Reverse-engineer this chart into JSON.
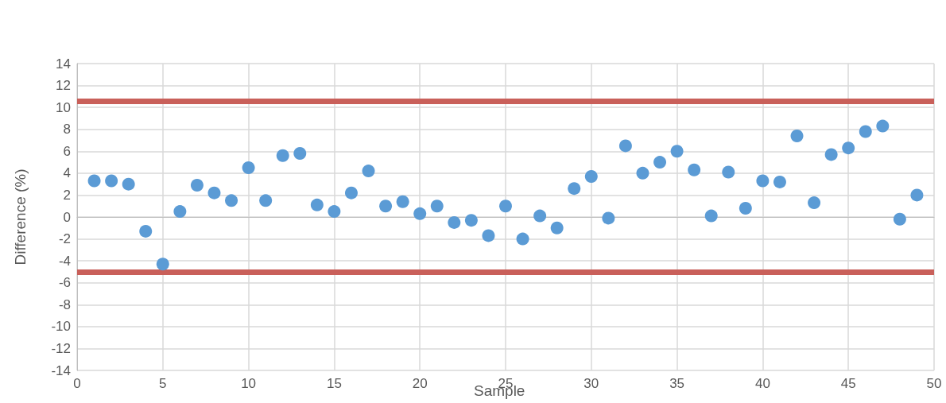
{
  "chart_data": {
    "type": "scatter",
    "xlabel": "Sample",
    "ylabel": "Difference (%)",
    "x": [
      1,
      2,
      3,
      4,
      5,
      6,
      7,
      8,
      9,
      10,
      11,
      12,
      13,
      14,
      15,
      16,
      17,
      18,
      19,
      20,
      21,
      22,
      23,
      24,
      25,
      26,
      27,
      28,
      29,
      30,
      31,
      32,
      33,
      34,
      35,
      36,
      37,
      38,
      39,
      40,
      41,
      42,
      43,
      44,
      45,
      46,
      47,
      48,
      49
    ],
    "series": [
      {
        "color": "#5b9bd5",
        "values": [
          3.3,
          3.3,
          3.0,
          -1.3,
          -4.3,
          0.5,
          2.9,
          2.2,
          1.5,
          4.5,
          1.5,
          5.6,
          5.8,
          1.1,
          0.5,
          2.2,
          4.2,
          1.0,
          1.4,
          0.3,
          1.0,
          -0.5,
          -0.3,
          -1.7,
          1.0,
          -2.0,
          0.1,
          -1.0,
          2.6,
          3.7,
          -0.1,
          6.5,
          4.0,
          5.0,
          6.0,
          4.3,
          0.1,
          4.1,
          0.8,
          3.3,
          3.2,
          7.4,
          1.3,
          5.7,
          6.3,
          7.8,
          8.3,
          -0.2,
          2.0
        ]
      }
    ],
    "xlim": [
      0,
      50
    ],
    "xticks": [
      0,
      5,
      10,
      15,
      20,
      25,
      30,
      35,
      40,
      45,
      50
    ],
    "ylim": [
      -14,
      14
    ],
    "yticks": [
      -14,
      -12,
      -10,
      -8,
      -6,
      -4,
      -2,
      0,
      2,
      4,
      6,
      8,
      10,
      12,
      14
    ],
    "ref_lines": [
      {
        "axis": "y",
        "value": 10.6,
        "color": "#c9605a"
      },
      {
        "axis": "y",
        "value": -5.0,
        "color": "#c9605a"
      }
    ],
    "grid": true,
    "marker": "circle"
  }
}
